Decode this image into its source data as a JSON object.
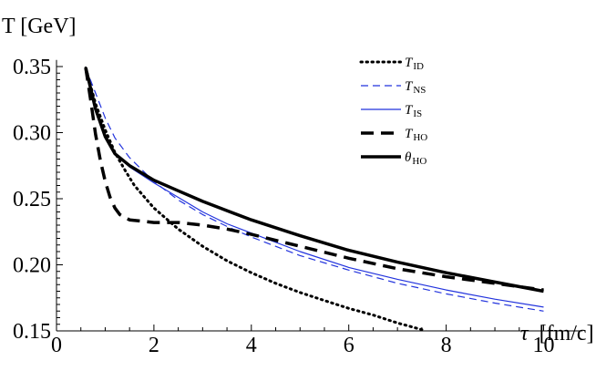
{
  "chart_data": {
    "type": "line",
    "ylabel": "T [GeV]",
    "xlabel_symbol": "τ",
    "xlabel_unit": "[fm/c]",
    "xlim": [
      0,
      10.8
    ],
    "ylim": [
      0.15,
      0.355
    ],
    "x_ticks": [
      0,
      2,
      4,
      6,
      8,
      10
    ],
    "y_ticks": [
      0.15,
      0.2,
      0.25,
      0.3,
      0.35
    ],
    "x_tick_labels": [
      "0",
      "2",
      "4",
      "6",
      "8",
      "10"
    ],
    "y_tick_labels": [
      "0.15",
      "0.20",
      "0.25",
      "0.30",
      "0.35"
    ],
    "legend_position": "top-right",
    "series": [
      {
        "name": "T_ID",
        "label_main": "T",
        "label_sub": "ID",
        "color": "#000000",
        "style": "dotted",
        "width": 3,
        "points": [
          [
            0.6,
            0.349
          ],
          [
            0.8,
            0.322
          ],
          [
            1.0,
            0.302
          ],
          [
            1.2,
            0.285
          ],
          [
            1.4,
            0.272
          ],
          [
            1.6,
            0.26
          ],
          [
            2.0,
            0.243
          ],
          [
            2.5,
            0.227
          ],
          [
            3.0,
            0.214
          ],
          [
            3.5,
            0.203
          ],
          [
            4.0,
            0.194
          ],
          [
            4.5,
            0.186
          ],
          [
            5.0,
            0.179
          ],
          [
            5.5,
            0.173
          ],
          [
            6.0,
            0.167
          ],
          [
            6.5,
            0.162
          ],
          [
            7.0,
            0.156
          ],
          [
            7.5,
            0.151
          ]
        ]
      },
      {
        "name": "T_NS",
        "label_main": "T",
        "label_sub": "NS",
        "color": "#2233dd",
        "style": "dashed-thin",
        "width": 1.2,
        "points": [
          [
            0.6,
            0.349
          ],
          [
            0.8,
            0.33
          ],
          [
            1.0,
            0.311
          ],
          [
            1.2,
            0.296
          ],
          [
            1.5,
            0.281
          ],
          [
            2.0,
            0.263
          ],
          [
            2.5,
            0.249
          ],
          [
            3.0,
            0.238
          ],
          [
            3.5,
            0.229
          ],
          [
            4.0,
            0.221
          ],
          [
            5.0,
            0.207
          ],
          [
            6.0,
            0.196
          ],
          [
            7.0,
            0.186
          ],
          [
            8.0,
            0.178
          ],
          [
            9.0,
            0.171
          ],
          [
            10.0,
            0.165
          ]
        ]
      },
      {
        "name": "T_IS",
        "label_main": "T",
        "label_sub": "IS",
        "color": "#2233dd",
        "style": "solid-thin",
        "width": 1.2,
        "points": [
          [
            0.6,
            0.349
          ],
          [
            0.8,
            0.318
          ],
          [
            1.0,
            0.297
          ],
          [
            1.2,
            0.284
          ],
          [
            1.5,
            0.274
          ],
          [
            2.0,
            0.262
          ],
          [
            2.5,
            0.251
          ],
          [
            3.0,
            0.24
          ],
          [
            3.5,
            0.231
          ],
          [
            4.0,
            0.224
          ],
          [
            5.0,
            0.21
          ],
          [
            6.0,
            0.198
          ],
          [
            7.0,
            0.189
          ],
          [
            8.0,
            0.181
          ],
          [
            9.0,
            0.174
          ],
          [
            10.0,
            0.168
          ]
        ]
      },
      {
        "name": "T_HO",
        "label_main": "T",
        "label_sub": "HO",
        "color": "#000000",
        "style": "dashed-thick",
        "width": 3.5,
        "points": [
          [
            0.6,
            0.349
          ],
          [
            0.7,
            0.325
          ],
          [
            0.8,
            0.299
          ],
          [
            0.9,
            0.279
          ],
          [
            1.0,
            0.263
          ],
          [
            1.1,
            0.251
          ],
          [
            1.2,
            0.243
          ],
          [
            1.3,
            0.238
          ],
          [
            1.5,
            0.234
          ],
          [
            2.0,
            0.232
          ],
          [
            2.5,
            0.232
          ],
          [
            3.0,
            0.23
          ],
          [
            3.5,
            0.227
          ],
          [
            4.0,
            0.223
          ],
          [
            5.0,
            0.214
          ],
          [
            6.0,
            0.205
          ],
          [
            7.0,
            0.197
          ],
          [
            8.0,
            0.191
          ],
          [
            9.0,
            0.186
          ],
          [
            10.0,
            0.181
          ]
        ]
      },
      {
        "name": "θ_HO",
        "label_main": "θ",
        "label_sub": "HO",
        "color": "#000000",
        "style": "solid-thick",
        "width": 3.5,
        "points": [
          [
            0.6,
            0.349
          ],
          [
            0.8,
            0.318
          ],
          [
            1.0,
            0.297
          ],
          [
            1.2,
            0.284
          ],
          [
            1.5,
            0.275
          ],
          [
            2.0,
            0.264
          ],
          [
            2.5,
            0.256
          ],
          [
            3.0,
            0.248
          ],
          [
            3.5,
            0.241
          ],
          [
            4.0,
            0.234
          ],
          [
            5.0,
            0.222
          ],
          [
            6.0,
            0.211
          ],
          [
            7.0,
            0.202
          ],
          [
            8.0,
            0.194
          ],
          [
            9.0,
            0.187
          ],
          [
            10.0,
            0.18
          ]
        ]
      }
    ]
  }
}
